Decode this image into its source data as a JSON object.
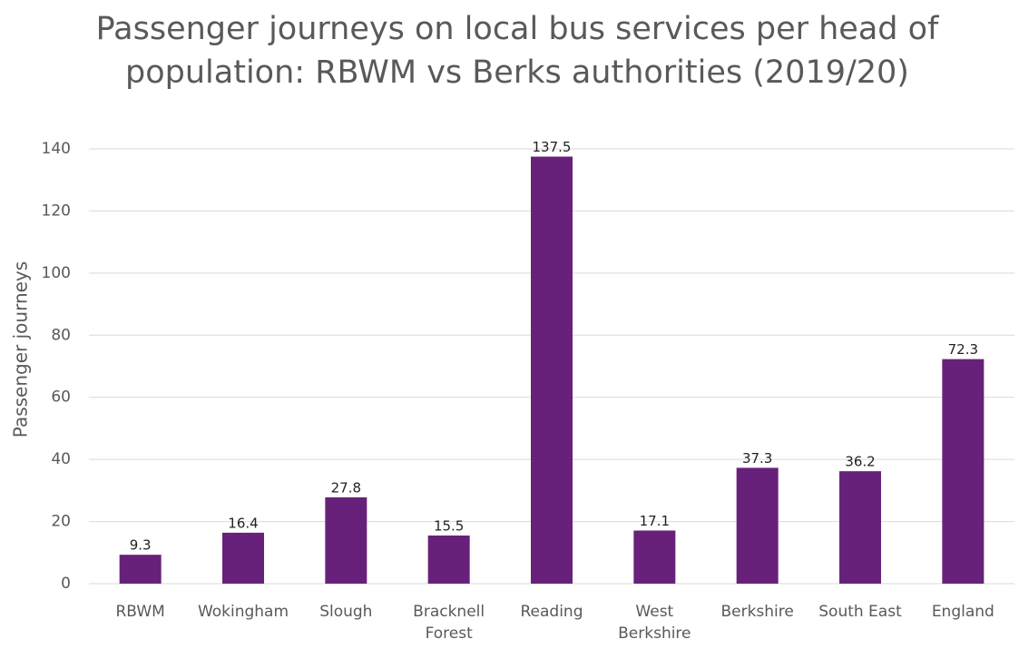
{
  "chart_data": {
    "type": "bar",
    "title": "Passenger journeys on local bus services per head of population: RBWM vs Berks authorities (2019/20)",
    "y_axis_label": "Passenger journeys",
    "categories": [
      "RBWM",
      "Wokingham",
      "Slough",
      "Bracknell Forest",
      "Reading",
      "West Berkshire",
      "Berkshire",
      "South East",
      "England"
    ],
    "values": [
      9.3,
      16.4,
      27.8,
      15.5,
      137.5,
      17.1,
      37.3,
      36.2,
      72.3
    ],
    "color": "#68217a",
    "ylim": [
      0,
      140
    ],
    "yticks": [
      0,
      20,
      40,
      60,
      80,
      100,
      120,
      140
    ],
    "grid": true
  }
}
